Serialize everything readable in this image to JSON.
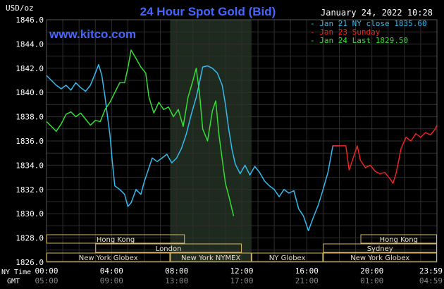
{
  "chart_data": {
    "type": "line",
    "title": "24 Hour Spot Gold (Bid)",
    "watermark": "www.kitco.com",
    "timestamp": "January 24, 2022 10:28",
    "ylabel": "USD/oz",
    "ylim": [
      1826.0,
      1846.0
    ],
    "yticks": [
      "1846.0",
      "1844.0",
      "1842.0",
      "1840.0",
      "1838.0",
      "1836.0",
      "1834.0",
      "1832.0",
      "1830.0",
      "1828.0",
      "1826.0"
    ],
    "xlim": [
      0,
      24
    ],
    "x_axis_label_ny": "NY Time",
    "x_axis_label_gmt": "GMT",
    "xticks_ny": [
      "00:00",
      "04:00",
      "08:00",
      "12:00",
      "16:00",
      "20:00",
      "23:59"
    ],
    "xticks_gmt": [
      "05:00",
      "09:00",
      "13:00",
      "17:00",
      "21:00",
      "01:00",
      "04:59"
    ],
    "highlight_range": [
      7.6,
      12.6
    ],
    "grid": true,
    "legend_position": "top-right",
    "series": [
      {
        "name": "Jan 21 NY close 1835.60",
        "color": "#33bbee",
        "points": [
          [
            0,
            1841.4
          ],
          [
            0.3,
            1841.0
          ],
          [
            0.6,
            1840.6
          ],
          [
            0.9,
            1840.3
          ],
          [
            1.2,
            1840.6
          ],
          [
            1.5,
            1840.2
          ],
          [
            1.8,
            1840.8
          ],
          [
            2.1,
            1840.4
          ],
          [
            2.4,
            1840.1
          ],
          [
            2.7,
            1840.6
          ],
          [
            3.0,
            1841.6
          ],
          [
            3.2,
            1842.3
          ],
          [
            3.4,
            1841.4
          ],
          [
            3.6,
            1839.6
          ],
          [
            3.75,
            1838.0
          ],
          [
            3.9,
            1836.5
          ],
          [
            4.05,
            1834.2
          ],
          [
            4.2,
            1832.3
          ],
          [
            4.5,
            1832.0
          ],
          [
            4.8,
            1831.6
          ],
          [
            5.0,
            1830.6
          ],
          [
            5.2,
            1830.9
          ],
          [
            5.5,
            1832.0
          ],
          [
            5.8,
            1831.6
          ],
          [
            6.0,
            1832.6
          ],
          [
            6.2,
            1833.4
          ],
          [
            6.5,
            1834.6
          ],
          [
            6.8,
            1834.3
          ],
          [
            7.1,
            1834.6
          ],
          [
            7.4,
            1834.9
          ],
          [
            7.7,
            1834.2
          ],
          [
            8.0,
            1834.6
          ],
          [
            8.3,
            1835.4
          ],
          [
            8.6,
            1836.6
          ],
          [
            8.9,
            1838.2
          ],
          [
            9.2,
            1839.6
          ],
          [
            9.4,
            1840.8
          ],
          [
            9.6,
            1842.1
          ],
          [
            9.9,
            1842.2
          ],
          [
            10.2,
            1842.0
          ],
          [
            10.5,
            1841.6
          ],
          [
            10.8,
            1840.6
          ],
          [
            11.0,
            1839.0
          ],
          [
            11.2,
            1837.0
          ],
          [
            11.4,
            1835.3
          ],
          [
            11.6,
            1834.1
          ],
          [
            11.9,
            1833.3
          ],
          [
            12.2,
            1834.0
          ],
          [
            12.5,
            1833.2
          ],
          [
            12.8,
            1833.9
          ],
          [
            13.1,
            1833.4
          ],
          [
            13.4,
            1832.7
          ],
          [
            13.7,
            1832.3
          ],
          [
            14.0,
            1832.0
          ],
          [
            14.3,
            1831.4
          ],
          [
            14.6,
            1832.0
          ],
          [
            14.9,
            1831.7
          ],
          [
            15.2,
            1831.9
          ],
          [
            15.5,
            1830.4
          ],
          [
            15.8,
            1829.8
          ],
          [
            16.1,
            1828.6
          ],
          [
            16.4,
            1829.7
          ],
          [
            16.7,
            1830.7
          ],
          [
            17.0,
            1832.0
          ],
          [
            17.3,
            1833.4
          ],
          [
            17.6,
            1835.6
          ],
          [
            18.0,
            1835.6
          ]
        ]
      },
      {
        "name": "Jan 23 Sunday",
        "color": "#ee2222",
        "points": [
          [
            17.6,
            1835.6
          ],
          [
            18.4,
            1835.6
          ],
          [
            18.6,
            1833.6
          ],
          [
            18.9,
            1834.8
          ],
          [
            19.1,
            1835.6
          ],
          [
            19.3,
            1834.4
          ],
          [
            19.6,
            1833.8
          ],
          [
            19.9,
            1834.0
          ],
          [
            20.2,
            1833.5
          ],
          [
            20.5,
            1833.3
          ],
          [
            20.8,
            1833.4
          ],
          [
            21.1,
            1832.9
          ],
          [
            21.3,
            1832.5
          ],
          [
            21.5,
            1833.4
          ]
        ]
      },
      {
        "name": "Jan 24 Last 1829.50",
        "color": "#33dd33",
        "points": [
          [
            0,
            1837.6
          ],
          [
            0.3,
            1837.2
          ],
          [
            0.6,
            1836.8
          ],
          [
            0.9,
            1837.4
          ],
          [
            1.2,
            1838.2
          ],
          [
            1.5,
            1838.4
          ],
          [
            1.8,
            1838.0
          ],
          [
            2.1,
            1838.3
          ],
          [
            2.4,
            1837.8
          ],
          [
            2.7,
            1837.3
          ],
          [
            3.0,
            1837.7
          ],
          [
            3.3,
            1837.6
          ],
          [
            3.6,
            1838.6
          ],
          [
            3.9,
            1839.2
          ],
          [
            4.2,
            1840.0
          ],
          [
            4.5,
            1840.8
          ],
          [
            4.8,
            1840.8
          ],
          [
            5.0,
            1842.0
          ],
          [
            5.2,
            1843.5
          ],
          [
            5.5,
            1842.8
          ],
          [
            5.8,
            1842.1
          ],
          [
            6.1,
            1841.6
          ],
          [
            6.3,
            1839.6
          ],
          [
            6.6,
            1838.3
          ],
          [
            6.9,
            1839.2
          ],
          [
            7.2,
            1838.6
          ],
          [
            7.5,
            1838.8
          ],
          [
            7.8,
            1838.0
          ],
          [
            8.1,
            1838.6
          ],
          [
            8.4,
            1837.2
          ],
          [
            8.7,
            1839.6
          ],
          [
            9.0,
            1841.0
          ],
          [
            9.2,
            1842.0
          ],
          [
            9.4,
            1840.0
          ],
          [
            9.6,
            1837.0
          ],
          [
            9.9,
            1836.0
          ],
          [
            10.2,
            1838.5
          ],
          [
            10.4,
            1839.3
          ],
          [
            10.6,
            1836.5
          ],
          [
            10.8,
            1834.5
          ],
          [
            11.0,
            1832.5
          ],
          [
            11.2,
            1831.5
          ],
          [
            11.5,
            1829.8
          ]
        ]
      },
      {
        "name": "",
        "color": "#ee2222",
        "points": [
          [
            21.5,
            1833.4
          ],
          [
            21.8,
            1835.4
          ],
          [
            22.1,
            1836.3
          ],
          [
            22.4,
            1836.0
          ],
          [
            22.7,
            1836.6
          ],
          [
            23.0,
            1836.3
          ],
          [
            23.3,
            1836.7
          ],
          [
            23.6,
            1836.5
          ],
          [
            23.9,
            1837.0
          ],
          [
            24.0,
            1837.3
          ]
        ]
      }
    ],
    "markets": [
      {
        "label": "Hong Kong",
        "start": 0,
        "end": 8.5,
        "row": 0
      },
      {
        "label": "Hong Kong",
        "start": 19.3,
        "end": 24,
        "row": 0
      },
      {
        "label": "London",
        "start": 3.0,
        "end": 12.0,
        "row": 1
      },
      {
        "label": "Sydney",
        "start": 17.0,
        "end": 24,
        "row": 1
      },
      {
        "label": "New York Globex",
        "start": 0,
        "end": 7.6,
        "row": 2
      },
      {
        "label": "New York NYMEX",
        "start": 7.6,
        "end": 12.6,
        "row": 2
      },
      {
        "label": "NY Globex",
        "start": 12.6,
        "end": 17.0,
        "row": 2
      },
      {
        "label": "New York Globex",
        "start": 17.0,
        "end": 24,
        "row": 2
      }
    ]
  }
}
